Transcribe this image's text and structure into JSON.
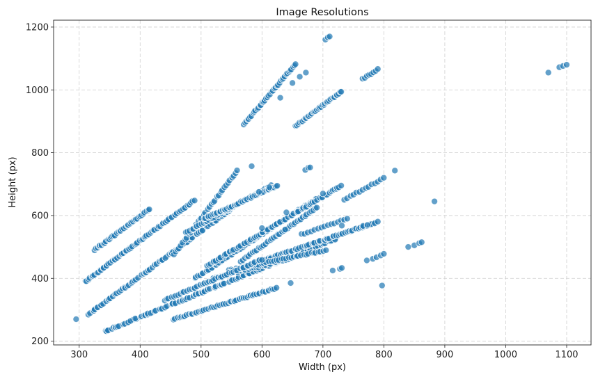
{
  "chart_data": {
    "type": "scatter",
    "title": "Image Resolutions",
    "xlabel": "Width (px)",
    "ylabel": "Height (px)",
    "xlim": [
      258,
      1140
    ],
    "ylim": [
      188,
      1222
    ],
    "xticks": [
      300,
      400,
      500,
      600,
      700,
      800,
      900,
      1000,
      1100
    ],
    "yticks": [
      200,
      400,
      600,
      800,
      1000,
      1200
    ],
    "grid": true,
    "color": "#1f77b4",
    "segments": [
      {
        "x0": 325,
        "y0": 490,
        "x1": 415,
        "y1": 620,
        "n": 38
      },
      {
        "x0": 310,
        "y0": 390,
        "x1": 490,
        "y1": 650,
        "n": 70
      },
      {
        "x0": 315,
        "y0": 285,
        "x1": 570,
        "y1": 650,
        "n": 90
      },
      {
        "x0": 340,
        "y0": 230,
        "x1": 720,
        "y1": 525,
        "n": 120
      },
      {
        "x0": 455,
        "y0": 270,
        "x1": 625,
        "y1": 370,
        "n": 55
      },
      {
        "x0": 455,
        "y0": 475,
        "x1": 560,
        "y1": 745,
        "n": 35
      },
      {
        "x0": 475,
        "y0": 545,
        "x1": 615,
        "y1": 695,
        "n": 45
      },
      {
        "x0": 505,
        "y0": 590,
        "x1": 625,
        "y1": 695,
        "n": 45
      },
      {
        "x0": 490,
        "y0": 400,
        "x1": 690,
        "y1": 655,
        "n": 70
      },
      {
        "x0": 510,
        "y0": 440,
        "x1": 730,
        "y1": 695,
        "n": 75
      },
      {
        "x0": 560,
        "y0": 430,
        "x1": 790,
        "y1": 580,
        "n": 75
      },
      {
        "x0": 520,
        "y0": 400,
        "x1": 660,
        "y1": 470,
        "n": 35
      },
      {
        "x0": 565,
        "y0": 455,
        "x1": 690,
        "y1": 625,
        "n": 40
      },
      {
        "x0": 570,
        "y0": 890,
        "x1": 655,
        "y1": 1082,
        "n": 40
      },
      {
        "x0": 655,
        "y0": 885,
        "x1": 730,
        "y1": 995,
        "n": 35
      },
      {
        "x0": 735,
        "y0": 650,
        "x1": 800,
        "y1": 720,
        "n": 14
      },
      {
        "x0": 765,
        "y0": 1035,
        "x1": 790,
        "y1": 1065,
        "n": 8
      },
      {
        "x0": 545,
        "y0": 425,
        "x1": 705,
        "y1": 490,
        "n": 40
      },
      {
        "x0": 440,
        "y0": 330,
        "x1": 600,
        "y1": 460,
        "n": 45
      },
      {
        "x0": 665,
        "y0": 540,
        "x1": 740,
        "y1": 590,
        "n": 15
      }
    ],
    "points": [
      {
        "x": 295,
        "y": 270
      },
      {
        "x": 704,
        "y": 1160
      },
      {
        "x": 708,
        "y": 1167
      },
      {
        "x": 711,
        "y": 1170
      },
      {
        "x": 1070,
        "y": 1055
      },
      {
        "x": 1088,
        "y": 1072
      },
      {
        "x": 1094,
        "y": 1076
      },
      {
        "x": 1100,
        "y": 1080
      },
      {
        "x": 818,
        "y": 743
      },
      {
        "x": 883,
        "y": 645
      },
      {
        "x": 797,
        "y": 377
      },
      {
        "x": 840,
        "y": 500
      },
      {
        "x": 850,
        "y": 505
      },
      {
        "x": 858,
        "y": 512
      },
      {
        "x": 862,
        "y": 515
      },
      {
        "x": 772,
        "y": 457
      },
      {
        "x": 782,
        "y": 462
      },
      {
        "x": 788,
        "y": 467
      },
      {
        "x": 795,
        "y": 473
      },
      {
        "x": 800,
        "y": 478
      },
      {
        "x": 716,
        "y": 425
      },
      {
        "x": 728,
        "y": 430
      },
      {
        "x": 731,
        "y": 433
      },
      {
        "x": 731,
        "y": 568
      },
      {
        "x": 647,
        "y": 385
      },
      {
        "x": 638,
        "y": 555
      },
      {
        "x": 583,
        "y": 757
      },
      {
        "x": 671,
        "y": 745
      },
      {
        "x": 676,
        "y": 752
      },
      {
        "x": 679,
        "y": 753
      },
      {
        "x": 650,
        "y": 1022
      },
      {
        "x": 662,
        "y": 1042
      },
      {
        "x": 672,
        "y": 1055
      },
      {
        "x": 630,
        "y": 975
      },
      {
        "x": 766,
        "y": 567
      },
      {
        "x": 773,
        "y": 570
      },
      {
        "x": 600,
        "y": 560
      },
      {
        "x": 640,
        "y": 610
      },
      {
        "x": 700,
        "y": 670
      },
      {
        "x": 612,
        "y": 690
      },
      {
        "x": 595,
        "y": 675
      }
    ]
  }
}
